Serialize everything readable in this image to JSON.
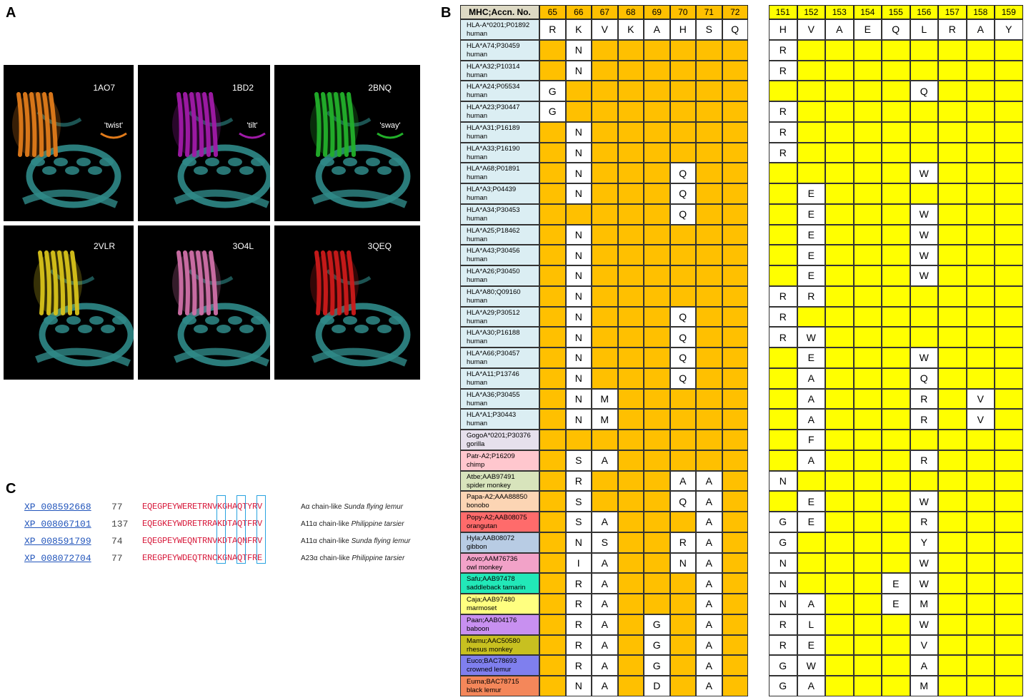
{
  "panels": {
    "a": "A",
    "b": "B",
    "c": "C"
  },
  "panel_a": {
    "structures": [
      {
        "id": "1AO7",
        "motion": "'twist'",
        "color": "#e07a1a"
      },
      {
        "id": "1BD2",
        "motion": "'tilt'",
        "color": "#a01aa8"
      },
      {
        "id": "2BNQ",
        "motion": "'sway'",
        "color": "#22b02a"
      },
      {
        "id": "2VLR",
        "motion": "",
        "color": "#d8c21a"
      },
      {
        "id": "3O4L",
        "motion": "",
        "color": "#d070a8"
      },
      {
        "id": "3QEQ",
        "motion": "",
        "color": "#cc1a1a"
      }
    ],
    "mhc_color": "#2f8a88"
  },
  "panel_b": {
    "header_label": "MHC;Accn. No.",
    "colors": {
      "left_block": "#ffc000",
      "right_block": "#ffff00",
      "header_label_bg": "#ddd9c4"
    },
    "left_positions": [
      "65",
      "66",
      "67",
      "68",
      "69",
      "70",
      "71",
      "72"
    ],
    "right_positions": [
      "151",
      "152",
      "153",
      "154",
      "155",
      "156",
      "157",
      "158",
      "159"
    ],
    "rows": [
      {
        "name": "HLA-A*0201;P01892",
        "species": "human",
        "bg": "#dbeef3",
        "left": [
          "R",
          "K",
          "V",
          "K",
          "A",
          "H",
          "S",
          "Q"
        ],
        "right": [
          "H",
          "V",
          "A",
          "E",
          "Q",
          "L",
          "R",
          "A",
          "Y"
        ]
      },
      {
        "name": "HLA*A74;P30459",
        "species": "human",
        "bg": "#dbeef3",
        "left": [
          "",
          "N",
          "",
          "",
          "",
          "",
          "",
          ""
        ],
        "right": [
          "R",
          "",
          "",
          "",
          "",
          "",
          "",
          "",
          ""
        ]
      },
      {
        "name": "HLA*A32;P10314",
        "species": "human",
        "bg": "#dbeef3",
        "left": [
          "",
          "N",
          "",
          "",
          "",
          "",
          "",
          ""
        ],
        "right": [
          "R",
          "",
          "",
          "",
          "",
          "",
          "",
          "",
          ""
        ]
      },
      {
        "name": "HLA*A24;P05534",
        "species": "human",
        "bg": "#dbeef3",
        "left": [
          "G",
          "",
          "",
          "",
          "",
          "",
          "",
          ""
        ],
        "right": [
          "",
          "",
          "",
          "",
          "",
          "Q",
          "",
          "",
          ""
        ]
      },
      {
        "name": "HLA*A23;P30447",
        "species": "human",
        "bg": "#dbeef3",
        "left": [
          "G",
          "",
          "",
          "",
          "",
          "",
          "",
          ""
        ],
        "right": [
          "R",
          "",
          "",
          "",
          "",
          "",
          "",
          "",
          ""
        ]
      },
      {
        "name": "HLA*A31;P16189",
        "species": "human",
        "bg": "#dbeef3",
        "left": [
          "",
          "N",
          "",
          "",
          "",
          "",
          "",
          ""
        ],
        "right": [
          "R",
          "",
          "",
          "",
          "",
          "",
          "",
          "",
          ""
        ]
      },
      {
        "name": "HLA*A33;P16190",
        "species": "human",
        "bg": "#dbeef3",
        "left": [
          "",
          "N",
          "",
          "",
          "",
          "",
          "",
          ""
        ],
        "right": [
          "R",
          "",
          "",
          "",
          "",
          "",
          "",
          "",
          ""
        ]
      },
      {
        "name": "HLA*A68;P01891",
        "species": "human",
        "bg": "#dbeef3",
        "left": [
          "",
          "N",
          "",
          "",
          "",
          "Q",
          "",
          ""
        ],
        "right": [
          "",
          "",
          "",
          "",
          "",
          "W",
          "",
          "",
          ""
        ]
      },
      {
        "name": "HLA*A3;P04439",
        "species": "human",
        "bg": "#dbeef3",
        "left": [
          "",
          "N",
          "",
          "",
          "",
          "Q",
          "",
          ""
        ],
        "right": [
          "",
          "E",
          "",
          "",
          "",
          "",
          "",
          "",
          ""
        ]
      },
      {
        "name": "HLA*A34;P30453",
        "species": "human",
        "bg": "#dbeef3",
        "left": [
          "",
          "",
          "",
          "",
          "",
          "Q",
          "",
          ""
        ],
        "right": [
          "",
          "E",
          "",
          "",
          "",
          "W",
          "",
          "",
          ""
        ]
      },
      {
        "name": "HLA*A25;P18462",
        "species": "human",
        "bg": "#dbeef3",
        "left": [
          "",
          "N",
          "",
          "",
          "",
          "",
          "",
          ""
        ],
        "right": [
          "",
          "E",
          "",
          "",
          "",
          "W",
          "",
          "",
          ""
        ]
      },
      {
        "name": "HLA*A43;P30456",
        "species": "human",
        "bg": "#dbeef3",
        "left": [
          "",
          "N",
          "",
          "",
          "",
          "",
          "",
          ""
        ],
        "right": [
          "",
          "E",
          "",
          "",
          "",
          "W",
          "",
          "",
          ""
        ]
      },
      {
        "name": "HLA*A26;P30450",
        "species": "human",
        "bg": "#dbeef3",
        "left": [
          "",
          "N",
          "",
          "",
          "",
          "",
          "",
          ""
        ],
        "right": [
          "",
          "E",
          "",
          "",
          "",
          "W",
          "",
          "",
          ""
        ]
      },
      {
        "name": "HLA*A80;Q09160",
        "species": "human",
        "bg": "#dbeef3",
        "left": [
          "",
          "N",
          "",
          "",
          "",
          "",
          "",
          ""
        ],
        "right": [
          "R",
          "R",
          "",
          "",
          "",
          "",
          "",
          "",
          ""
        ]
      },
      {
        "name": "HLA*A29;P30512",
        "species": "human",
        "bg": "#dbeef3",
        "left": [
          "",
          "N",
          "",
          "",
          "",
          "Q",
          "",
          ""
        ],
        "right": [
          "R",
          "",
          "",
          "",
          "",
          "",
          "",
          "",
          ""
        ]
      },
      {
        "name": "HLA*A30;P16188",
        "species": "human",
        "bg": "#dbeef3",
        "left": [
          "",
          "N",
          "",
          "",
          "",
          "Q",
          "",
          ""
        ],
        "right": [
          "R",
          "W",
          "",
          "",
          "",
          "",
          "",
          "",
          ""
        ]
      },
      {
        "name": "HLA*A66;P30457",
        "species": "human",
        "bg": "#dbeef3",
        "left": [
          "",
          "N",
          "",
          "",
          "",
          "Q",
          "",
          ""
        ],
        "right": [
          "",
          "E",
          "",
          "",
          "",
          "W",
          "",
          "",
          ""
        ]
      },
      {
        "name": "HLA*A11;P13746",
        "species": "human",
        "bg": "#dbeef3",
        "left": [
          "",
          "N",
          "",
          "",
          "",
          "Q",
          "",
          ""
        ],
        "right": [
          "",
          "A",
          "",
          "",
          "",
          "Q",
          "",
          "",
          ""
        ]
      },
      {
        "name": "HLA*A36;P30455",
        "species": "human",
        "bg": "#dbeef3",
        "left": [
          "",
          "N",
          "M",
          "",
          "",
          "",
          "",
          ""
        ],
        "right": [
          "",
          "A",
          "",
          "",
          "",
          "R",
          "",
          "V",
          ""
        ]
      },
      {
        "name": "HLA*A1;P30443",
        "species": "human",
        "bg": "#dbeef3",
        "left": [
          "",
          "N",
          "M",
          "",
          "",
          "",
          "",
          ""
        ],
        "right": [
          "",
          "A",
          "",
          "",
          "",
          "R",
          "",
          "V",
          ""
        ]
      },
      {
        "name": "GogoA*0201;P30376",
        "species": "gorilla",
        "bg": "#e6e0ec",
        "left": [
          "",
          "",
          "",
          "",
          "",
          "",
          "",
          ""
        ],
        "right": [
          "",
          "F",
          "",
          "",
          "",
          "",
          "",
          "",
          ""
        ]
      },
      {
        "name": "Patr-A2;P16209",
        "species": "chimp",
        "bg": "#ffc7ce",
        "left": [
          "",
          "S",
          "A",
          "",
          "",
          "",
          "",
          ""
        ],
        "right": [
          "",
          "A",
          "",
          "",
          "",
          "R",
          "",
          "",
          ""
        ]
      },
      {
        "name": "Atbe;AAB97491",
        "species": "spider monkey",
        "bg": "#d8e4bc",
        "left": [
          "",
          "R",
          "",
          "",
          "",
          "A",
          "A",
          ""
        ],
        "right": [
          "N",
          "",
          "",
          "",
          "",
          "",
          "",
          "",
          ""
        ]
      },
      {
        "name": "Papa-A2;AAA88850",
        "species": "bonobo",
        "bg": "#fcd5b4",
        "left": [
          "",
          "S",
          "",
          "",
          "",
          "Q",
          "A",
          ""
        ],
        "right": [
          "",
          "E",
          "",
          "",
          "",
          "W",
          "",
          "",
          ""
        ]
      },
      {
        "name": "Popy-A2;AAB08075",
        "species": "orangutan",
        "bg": "#ff6b6b",
        "left": [
          "",
          "S",
          "A",
          "",
          "",
          "",
          "A",
          ""
        ],
        "right": [
          "G",
          "E",
          "",
          "",
          "",
          "R",
          "",
          "",
          ""
        ]
      },
      {
        "name": "Hyla;AAB08072",
        "species": "gibbon",
        "bg": "#b8cce4",
        "left": [
          "",
          "N",
          "S",
          "",
          "",
          "R",
          "A",
          ""
        ],
        "right": [
          "G",
          "",
          "",
          "",
          "",
          "Y",
          "",
          "",
          ""
        ]
      },
      {
        "name": "Aovo;AAM76736",
        "species": "owl monkey",
        "bg": "#f2a2c8",
        "left": [
          "",
          "I",
          "A",
          "",
          "",
          "N",
          "A",
          ""
        ],
        "right": [
          "N",
          "",
          "",
          "",
          "",
          "W",
          "",
          "",
          ""
        ]
      },
      {
        "name": "Safu;AAB97478",
        "species": "saddleback tamarin",
        "bg": "#22e8b8",
        "left": [
          "",
          "R",
          "A",
          "",
          "",
          "",
          "A",
          ""
        ],
        "right": [
          "N",
          "",
          "",
          "",
          "E",
          "W",
          "",
          "",
          ""
        ]
      },
      {
        "name": "Caja;AAB97480",
        "species": "marmoset",
        "bg": "#ffff80",
        "left": [
          "",
          "R",
          "A",
          "",
          "",
          "",
          "A",
          ""
        ],
        "right": [
          "N",
          "A",
          "",
          "",
          "E",
          "M",
          "",
          "",
          ""
        ]
      },
      {
        "name": "Paan;AAB04176",
        "species": "baboon",
        "bg": "#c890f0",
        "left": [
          "",
          "R",
          "A",
          "",
          "G",
          "",
          "A",
          ""
        ],
        "right": [
          "R",
          "L",
          "",
          "",
          "",
          "W",
          "",
          "",
          ""
        ]
      },
      {
        "name": "Mamu;AAC50580",
        "species": "rhesus monkey",
        "bg": "#c8c020",
        "left": [
          "",
          "R",
          "A",
          "",
          "G",
          "",
          "A",
          ""
        ],
        "right": [
          "R",
          "E",
          "",
          "",
          "",
          "V",
          "",
          "",
          ""
        ]
      },
      {
        "name": "Euco;BAC78693",
        "species": "crowned lemur",
        "bg": "#7f7fee",
        "left": [
          "",
          "R",
          "A",
          "",
          "G",
          "",
          "A",
          ""
        ],
        "right": [
          "G",
          "W",
          "",
          "",
          "",
          "A",
          "",
          "",
          ""
        ]
      },
      {
        "name": "Euma;BAC78715",
        "species": "black lemur",
        "bg": "#f4875a",
        "left": [
          "",
          "N",
          "A",
          "",
          "D",
          "",
          "A",
          ""
        ],
        "right": [
          "G",
          "A",
          "",
          "",
          "",
          "M",
          "",
          "",
          ""
        ]
      }
    ]
  },
  "panel_c": {
    "rows": [
      {
        "accession": "XP_008592668",
        "start": "77",
        "sequence": "EQEGPEYWERETRNVKGHAQTYRV",
        "desc": "Aα chain-like",
        "species": "Sunda flying lemur"
      },
      {
        "accession": "XP_008067101",
        "start": "137",
        "sequence": "EQEGKEYWDRETRRAKDTAQTFRV",
        "desc": "A11α chain-like",
        "species": "Philippine tarsier"
      },
      {
        "accession": "XP_008591799",
        "start": "74",
        "sequence": "EQEGPEYWEQNTRNVKDTAQNFRV",
        "desc": "A11α chain-like",
        "species": "Sunda flying lemur"
      },
      {
        "accession": "XP_008072704",
        "start": "77",
        "sequence": "EREGPEYWDEQTRNCKGNAQTFRE",
        "desc": "A23α chain-like",
        "species": "Philippine tarsier"
      }
    ],
    "highlight_color": "#29a3e0"
  }
}
